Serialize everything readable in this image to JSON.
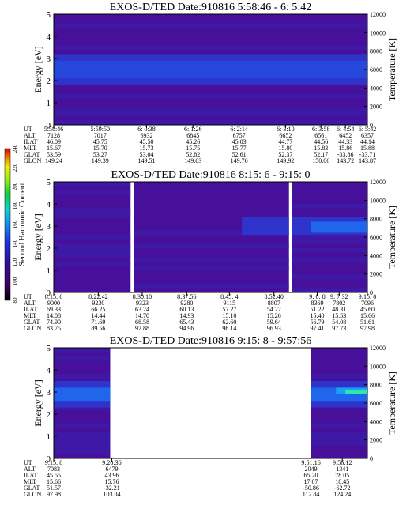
{
  "colors": {
    "background_dark": "#46109a",
    "band_mid": "#2a3fd8",
    "band_bright": "#1f6cf0",
    "band_hot": "#18a8f4",
    "peak": "#30f0a0"
  },
  "colorbar": {
    "label": "Second Harmonic Current",
    "ticks": [
      "80",
      "100",
      "120",
      "140",
      "160",
      "180",
      "200",
      "220",
      "240"
    ],
    "range": [
      80,
      240
    ]
  },
  "row_labels": [
    "UT",
    "ALT",
    "ILAT",
    "MLT",
    "GLAT",
    "GLON"
  ],
  "chart_data": [
    {
      "type": "heatmap",
      "title": "EXOS-D/TED   Date:910816  5:58:46 - 6: 5:42",
      "ylabel": "Energy [eV]",
      "y2label": "Temperature [K]",
      "ylim": [
        0,
        5
      ],
      "y2lim": [
        0,
        12000
      ],
      "yticks": [
        "0",
        "1",
        "2",
        "3",
        "4",
        "5"
      ],
      "y2ticks": [
        "0",
        "2000",
        "4000",
        "6000",
        "8000",
        "10000",
        "12000"
      ],
      "data_segments": [
        [
          0,
          1
        ]
      ],
      "bands": [
        {
          "energy": [
            2.1,
            2.9
          ],
          "level": "bright"
        },
        {
          "energy": [
            1.8,
            3.2
          ],
          "level": "mid"
        }
      ],
      "columns": [
        {
          "pos": 0.0,
          "UT": "5:58:46",
          "ALT": "7128",
          "ILAT": "46.09",
          "MLT": "15.67",
          "GLAT": "53.59",
          "GLON": "149.24"
        },
        {
          "pos": 0.148,
          "UT": "5:59:50",
          "ALT": "7017",
          "ILAT": "45.75",
          "MLT": "15.70",
          "GLAT": "53.27",
          "GLON": "149.39"
        },
        {
          "pos": 0.296,
          "UT": "6: 0:38",
          "ALT": "6932",
          "ILAT": "45.50",
          "MLT": "15.73",
          "GLAT": "53.04",
          "GLON": "149.51"
        },
        {
          "pos": 0.444,
          "UT": "6: 1:26",
          "ALT": "6845",
          "ILAT": "45.26",
          "MLT": "15.75",
          "GLAT": "52.82",
          "GLON": "149.63"
        },
        {
          "pos": 0.591,
          "UT": "6: 2:14",
          "ALT": "6757",
          "ILAT": "45.03",
          "MLT": "15.77",
          "GLAT": "52.61",
          "GLON": "149.76"
        },
        {
          "pos": 0.739,
          "UT": "6: 3:10",
          "ALT": "6652",
          "ILAT": "44.77",
          "MLT": "15.80",
          "GLAT": "52.37",
          "GLON": "149.92"
        },
        {
          "pos": 0.852,
          "UT": "6: 3:58",
          "ALT": "6561",
          "ILAT": "44.56",
          "MLT": "15.83",
          "GLAT": "52.17",
          "GLON": "150.06"
        },
        {
          "pos": 0.93,
          "UT": "6: 4:54",
          "ALT": "6452",
          "ILAT": "44.33",
          "MLT": "15.86",
          "GLAT": "-33.86",
          "GLON": "143.72"
        },
        {
          "pos": 1.0,
          "UT": "6: 5:42",
          "ALT": "6357",
          "ILAT": "44.14",
          "MLT": "15.88",
          "GLAT": "-33.71",
          "GLON": "143.87"
        }
      ]
    },
    {
      "type": "heatmap",
      "title": "EXOS-D/TED   Date:910816  8:15: 6 - 9:15: 0",
      "ylabel": "Energy [eV]",
      "y2label": "Temperature [K]",
      "ylim": [
        0,
        5
      ],
      "y2lim": [
        0,
        12000
      ],
      "yticks": [
        "0",
        "1",
        "2",
        "3",
        "4",
        "5"
      ],
      "y2ticks": [
        "0",
        "2000",
        "4000",
        "6000",
        "8000",
        "10000",
        "12000"
      ],
      "data_segments": [
        [
          0,
          0.245
        ],
        [
          0.255,
          0.75
        ],
        [
          0.76,
          1
        ]
      ],
      "bands": [
        {
          "energy": [
            2.6,
            3.4
          ],
          "level": "mid",
          "from": 0.6
        },
        {
          "energy": [
            2.7,
            3.2
          ],
          "level": "bright",
          "from": 0.82
        }
      ],
      "columns": [
        {
          "pos": 0.0,
          "UT": "8:15: 6",
          "ALT": "9000",
          "ILAT": "69.33",
          "MLT": "14.08",
          "GLAT": "74.90",
          "GLON": "83.75"
        },
        {
          "pos": 0.142,
          "UT": "8:22:42",
          "ALT": "9230",
          "ILAT": "66.25",
          "MLT": "14.44",
          "GLAT": "71.69",
          "GLON": "89.56"
        },
        {
          "pos": 0.282,
          "UT": "8:30:10",
          "ALT": "9323",
          "ILAT": "63.24",
          "MLT": "14.70",
          "GLAT": "68.58",
          "GLON": "92.88"
        },
        {
          "pos": 0.424,
          "UT": "8:37:56",
          "ALT": "9280",
          "ILAT": "60.13",
          "MLT": "14.93",
          "GLAT": "65.43",
          "GLON": "94.96"
        },
        {
          "pos": 0.56,
          "UT": "8:45: 4",
          "ALT": "9115",
          "ILAT": "57.27",
          "MLT": "15.10",
          "GLAT": "62.60",
          "GLON": "96.14"
        },
        {
          "pos": 0.702,
          "UT": "8:52:40",
          "ALT": "8807",
          "ILAT": "54.22",
          "MLT": "15.26",
          "GLAT": "59.64",
          "GLON": "96.93"
        },
        {
          "pos": 0.84,
          "UT": "9: 0: 8",
          "ALT": "8369",
          "ILAT": "51.22",
          "MLT": "15.40",
          "GLAT": "56.79",
          "GLON": "97.41"
        },
        {
          "pos": 0.91,
          "UT": "9: 7:32",
          "ALT": "7802",
          "ILAT": "48.31",
          "MLT": "15.53",
          "GLAT": "54.08",
          "GLON": "97.73"
        },
        {
          "pos": 1.0,
          "UT": "9:15: 0",
          "ALT": "7096",
          "ILAT": "45.60",
          "MLT": "15.66",
          "GLAT": "51.61",
          "GLON": "97.98"
        }
      ]
    },
    {
      "type": "heatmap",
      "title": "EXOS-D/TED   Date:910816  9:15: 8 - 9:57:56",
      "ylabel": "Energy [eV]",
      "y2label": "Temperature [K]",
      "ylim": [
        0,
        5
      ],
      "y2lim": [
        0,
        12000
      ],
      "yticks": [
        "0",
        "1",
        "2",
        "3",
        "4",
        "5"
      ],
      "y2ticks": [
        "0",
        "2000",
        "4000",
        "6000",
        "8000",
        "10000",
        "12000"
      ],
      "data_segments": [
        [
          0,
          0.18
        ],
        [
          0.82,
          1
        ]
      ],
      "bands": [
        {
          "energy": [
            2.3,
            3.5
          ],
          "level": "mid"
        },
        {
          "energy": [
            2.6,
            3.2
          ],
          "level": "bright"
        },
        {
          "energy": [
            2.9,
            3.2
          ],
          "level": "hot",
          "from": 0.9
        },
        {
          "energy": [
            2.9,
            3.1
          ],
          "level": "peak",
          "from": 0.93
        }
      ],
      "columns": [
        {
          "pos": 0.0,
          "UT": "9:15: 8",
          "ALT": "7083",
          "ILAT": "45.55",
          "MLT": "15.66",
          "GLAT": "51.57",
          "GLON": "97.98"
        },
        {
          "pos": 0.185,
          "UT": "9:20:36",
          "ALT": "6479",
          "ILAT": "43.96",
          "MLT": "15.76",
          "GLAT": "-32.21",
          "GLON": "103.04"
        },
        {
          "pos": 0.82,
          "UT": "9:51:16",
          "ALT": "2049",
          "ILAT": "65.20",
          "MLT": "17.07",
          "GLAT": "-50.86",
          "GLON": "112.84"
        },
        {
          "pos": 0.92,
          "UT": "9:56:12",
          "ALT": "1341",
          "ILAT": "78.05",
          "MLT": "18.45",
          "GLAT": "-62.72",
          "GLON": "124.24"
        }
      ]
    }
  ]
}
